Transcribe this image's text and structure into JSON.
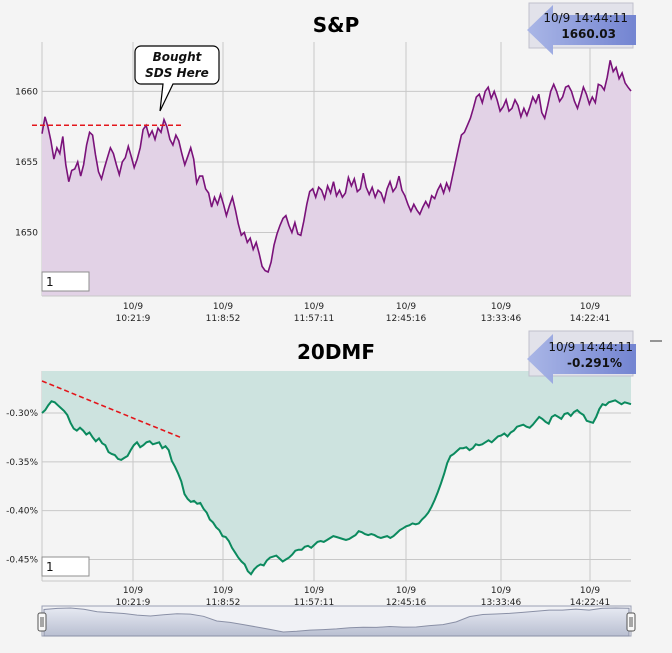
{
  "chart_data": [
    {
      "type": "line",
      "title": "S&P",
      "xlabel": "",
      "ylabel": "",
      "ylim": [
        1645.5,
        1663.5
      ],
      "y_ticks": [
        "1650",
        "1655",
        "1660"
      ],
      "y_tick_values": [
        1650,
        1655,
        1660
      ],
      "x_tick_dates": [
        "10/9",
        "10/9",
        "10/9",
        "10/9",
        "10/9",
        "10/9"
      ],
      "x_tick_times": [
        "10:21:9",
        "11:8:52",
        "11:57:11",
        "12:45:16",
        "13:33:46",
        "14:22:41"
      ],
      "grid": true,
      "last_date_time": "10/9 14:44:11",
      "last_value": "1660.03",
      "input_value": "1",
      "annotation": {
        "text_line1": "Bought",
        "text_line2": "SDS Here",
        "level": 1657.6
      },
      "series": [
        {
          "color": "#7a127a",
          "fill": "#e2d2e6",
          "values": [
            1657.0,
            1658.2,
            1657.5,
            1656.5,
            1655.2,
            1656.0,
            1655.6,
            1656.8,
            1654.8,
            1653.6,
            1654.4,
            1654.5,
            1655.0,
            1654.0,
            1654.8,
            1656.2,
            1657.1,
            1656.9,
            1655.5,
            1654.3,
            1653.8,
            1654.6,
            1655.3,
            1656.0,
            1655.6,
            1654.8,
            1654.1,
            1655.0,
            1655.3,
            1656.1,
            1655.4,
            1654.6,
            1655.2,
            1656.0,
            1657.3,
            1657.6,
            1656.8,
            1657.2,
            1656.6,
            1657.4,
            1657.1,
            1658.0,
            1657.5,
            1656.6,
            1656.2,
            1656.9,
            1656.5,
            1655.6,
            1654.8,
            1655.4,
            1656.0,
            1655.2,
            1653.5,
            1654.0,
            1654.0,
            1653.1,
            1652.8,
            1651.8,
            1652.5,
            1652.0,
            1652.7,
            1652.0,
            1651.2,
            1651.9,
            1652.5,
            1651.6,
            1650.6,
            1649.8,
            1650.0,
            1649.3,
            1649.6,
            1648.8,
            1649.3,
            1648.5,
            1647.6,
            1647.3,
            1647.2,
            1647.9,
            1649.1,
            1649.9,
            1650.5,
            1651.0,
            1651.2,
            1650.5,
            1650.0,
            1650.7,
            1649.9,
            1649.8,
            1650.8,
            1652.0,
            1652.9,
            1653.1,
            1652.5,
            1653.2,
            1653.0,
            1652.4,
            1653.3,
            1652.8,
            1653.6,
            1652.6,
            1653.0,
            1652.5,
            1652.8,
            1653.9,
            1653.3,
            1653.8,
            1652.9,
            1653.1,
            1654.2,
            1653.2,
            1652.7,
            1653.2,
            1652.5,
            1653.0,
            1652.8,
            1652.2,
            1653.1,
            1653.6,
            1652.9,
            1653.2,
            1654.0,
            1653.0,
            1652.6,
            1652.0,
            1651.5,
            1652.0,
            1651.6,
            1651.3,
            1651.8,
            1652.2,
            1651.8,
            1652.6,
            1652.4,
            1653.0,
            1653.4,
            1652.8,
            1653.5,
            1653.0,
            1654.0,
            1655.0,
            1656.0,
            1656.9,
            1657.1,
            1657.6,
            1658.1,
            1658.8,
            1659.6,
            1659.8,
            1659.2,
            1660.0,
            1660.3,
            1659.5,
            1660.0,
            1659.4,
            1658.6,
            1658.9,
            1659.4,
            1658.6,
            1658.8,
            1659.4,
            1659.0,
            1658.2,
            1658.8,
            1658.3,
            1658.9,
            1659.6,
            1659.2,
            1659.8,
            1658.5,
            1658.1,
            1659.0,
            1660.0,
            1660.5,
            1660.0,
            1659.3,
            1659.6,
            1660.3,
            1660.4,
            1660.0,
            1659.3,
            1658.8,
            1659.5,
            1660.3,
            1659.8,
            1659.1,
            1659.6,
            1659.2,
            1660.5,
            1660.4,
            1660.1,
            1661.0,
            1662.2,
            1661.4,
            1661.7,
            1660.9,
            1661.3,
            1660.6,
            1660.3,
            1660.03
          ]
        }
      ]
    },
    {
      "type": "line",
      "title": "20DMF",
      "xlabel": "",
      "ylabel": "",
      "ylim": [
        -0.472,
        -0.257
      ],
      "y_ticks": [
        "-0.30%",
        "-0.35%",
        "-0.40%",
        "-0.45%"
      ],
      "y_tick_values": [
        -0.3,
        -0.35,
        -0.4,
        -0.45
      ],
      "x_tick_dates": [
        "10/9",
        "10/9",
        "10/9",
        "10/9",
        "10/9",
        "10/9"
      ],
      "x_tick_times": [
        "10:21:9",
        "11:8:52",
        "11:57:11",
        "12:45:16",
        "13:33:46",
        "14:22:41"
      ],
      "grid": true,
      "last_date_time": "10/9 14:44:11",
      "last_value": "-0.291%",
      "input_value": "1",
      "series": [
        {
          "color": "#0b8a5e",
          "fill": "#cde3df",
          "values": [
            -0.3,
            -0.297,
            -0.292,
            -0.288,
            -0.289,
            -0.292,
            -0.295,
            -0.298,
            -0.302,
            -0.31,
            -0.316,
            -0.318,
            -0.315,
            -0.318,
            -0.322,
            -0.32,
            -0.325,
            -0.329,
            -0.326,
            -0.331,
            -0.333,
            -0.34,
            -0.342,
            -0.343,
            -0.347,
            -0.348,
            -0.346,
            -0.344,
            -0.338,
            -0.333,
            -0.33,
            -0.335,
            -0.333,
            -0.33,
            -0.329,
            -0.332,
            -0.331,
            -0.33,
            -0.336,
            -0.334,
            -0.338,
            -0.349,
            -0.355,
            -0.362,
            -0.37,
            -0.383,
            -0.388,
            -0.391,
            -0.39,
            -0.393,
            -0.392,
            -0.398,
            -0.402,
            -0.409,
            -0.412,
            -0.417,
            -0.42,
            -0.426,
            -0.427,
            -0.431,
            -0.438,
            -0.443,
            -0.448,
            -0.452,
            -0.455,
            -0.462,
            -0.465,
            -0.46,
            -0.457,
            -0.455,
            -0.456,
            -0.451,
            -0.448,
            -0.447,
            -0.446,
            -0.449,
            -0.452,
            -0.45,
            -0.448,
            -0.445,
            -0.441,
            -0.44,
            -0.44,
            -0.437,
            -0.436,
            -0.438,
            -0.435,
            -0.432,
            -0.431,
            -0.432,
            -0.43,
            -0.428,
            -0.426,
            -0.427,
            -0.428,
            -0.429,
            -0.43,
            -0.429,
            -0.427,
            -0.425,
            -0.421,
            -0.422,
            -0.424,
            -0.425,
            -0.424,
            -0.425,
            -0.427,
            -0.428,
            -0.427,
            -0.426,
            -0.428,
            -0.426,
            -0.423,
            -0.42,
            -0.418,
            -0.416,
            -0.415,
            -0.413,
            -0.414,
            -0.413,
            -0.409,
            -0.406,
            -0.402,
            -0.396,
            -0.389,
            -0.381,
            -0.372,
            -0.362,
            -0.351,
            -0.344,
            -0.342,
            -0.339,
            -0.336,
            -0.336,
            -0.335,
            -0.338,
            -0.336,
            -0.332,
            -0.333,
            -0.332,
            -0.33,
            -0.328,
            -0.33,
            -0.327,
            -0.324,
            -0.323,
            -0.321,
            -0.324,
            -0.32,
            -0.318,
            -0.314,
            -0.313,
            -0.312,
            -0.314,
            -0.315,
            -0.312,
            -0.308,
            -0.304,
            -0.306,
            -0.309,
            -0.311,
            -0.304,
            -0.302,
            -0.304,
            -0.306,
            -0.301,
            -0.3,
            -0.303,
            -0.299,
            -0.297,
            -0.3,
            -0.302,
            -0.308,
            -0.309,
            -0.31,
            -0.304,
            -0.296,
            -0.291,
            -0.292,
            -0.289,
            -0.288,
            -0.287,
            -0.289,
            -0.291,
            -0.289,
            -0.29,
            -0.291
          ]
        }
      ]
    }
  ],
  "navigator": {
    "handle_left_icon": "grip-handle-icon",
    "handle_right_icon": "grip-handle-icon",
    "values": [
      -0.3,
      -0.292,
      -0.289,
      -0.298,
      -0.316,
      -0.322,
      -0.329,
      -0.34,
      -0.347,
      -0.338,
      -0.331,
      -0.333,
      -0.349,
      -0.383,
      -0.393,
      -0.409,
      -0.426,
      -0.443,
      -0.462,
      -0.457,
      -0.448,
      -0.445,
      -0.44,
      -0.432,
      -0.428,
      -0.429,
      -0.422,
      -0.427,
      -0.426,
      -0.416,
      -0.409,
      -0.389,
      -0.351,
      -0.336,
      -0.332,
      -0.328,
      -0.321,
      -0.312,
      -0.304,
      -0.304,
      -0.297,
      -0.304,
      -0.291,
      -0.289,
      -0.291
    ]
  }
}
